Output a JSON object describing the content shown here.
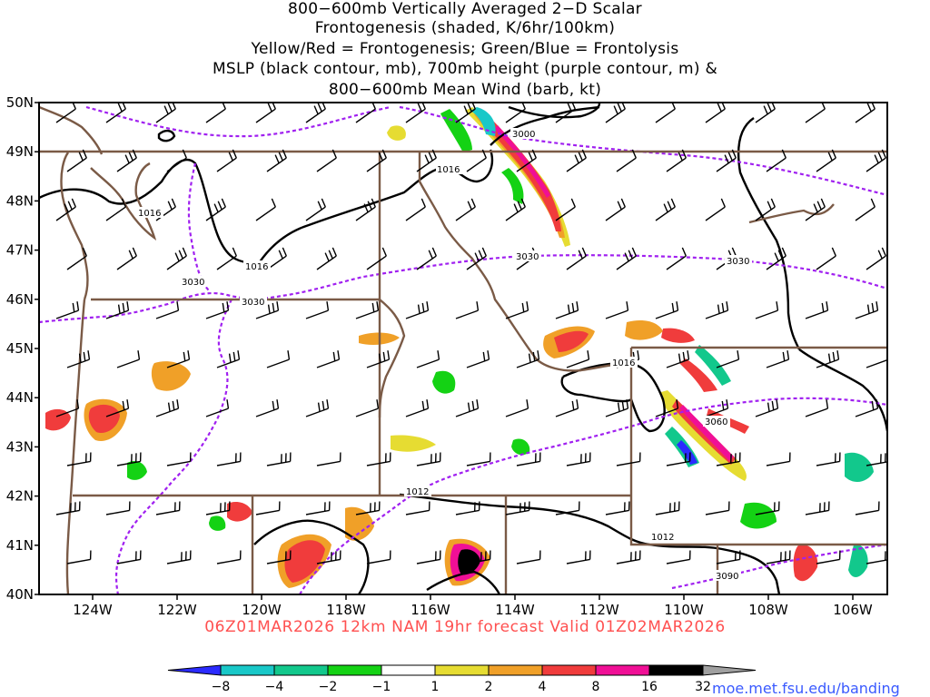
{
  "title": {
    "line1": "800−600mb Vertically Averaged 2−D Scalar",
    "line2": "Frontogenesis (shaded, K/6hr/100km)",
    "line3": "Yellow/Red = Frontogenesis;  Green/Blue = Frontolysis",
    "line4": "MSLP (black contour, mb), 700mb height (purple contour, m) &",
    "line5": "800−600mb Mean Wind (barb, kt)"
  },
  "valid_text": "06Z01MAR2026  12km NAM 19hr forecast Valid 01Z02MAR2026",
  "credit": "moe.met.fsu.edu/banding",
  "axes": {
    "lat_labels": [
      "50N",
      "49N",
      "48N",
      "47N",
      "46N",
      "45N",
      "44N",
      "43N",
      "42N",
      "41N",
      "40N"
    ],
    "lon_labels": [
      "124W",
      "122W",
      "120W",
      "118W",
      "116W",
      "114W",
      "112W",
      "110W",
      "108W",
      "106W"
    ]
  },
  "contour_labels": {
    "mslp": [
      "1016",
      "1016",
      "1016",
      "1016",
      "1012",
      "1012"
    ],
    "height": [
      "3000",
      "3030",
      "3030",
      "3030",
      "3030",
      "3060",
      "3090"
    ]
  },
  "colorbar": {
    "labels": [
      "−8",
      "−4",
      "−2",
      "−1",
      "1",
      "2",
      "4",
      "8",
      "16",
      "32"
    ],
    "colors": [
      "#2b2bff",
      "#19c8c8",
      "#12c88c",
      "#14d214",
      "#ffffff",
      "#e6dc32",
      "#f0a028",
      "#f03c3c",
      "#f00f96",
      "#000000",
      "#a0a0a0"
    ]
  },
  "colors": {
    "state_borders": "#7a5a46",
    "height_contour": "#a020f0",
    "mslp_contour": "#000000",
    "valid_text": "#ff5050",
    "credit": "#3a5aff"
  }
}
